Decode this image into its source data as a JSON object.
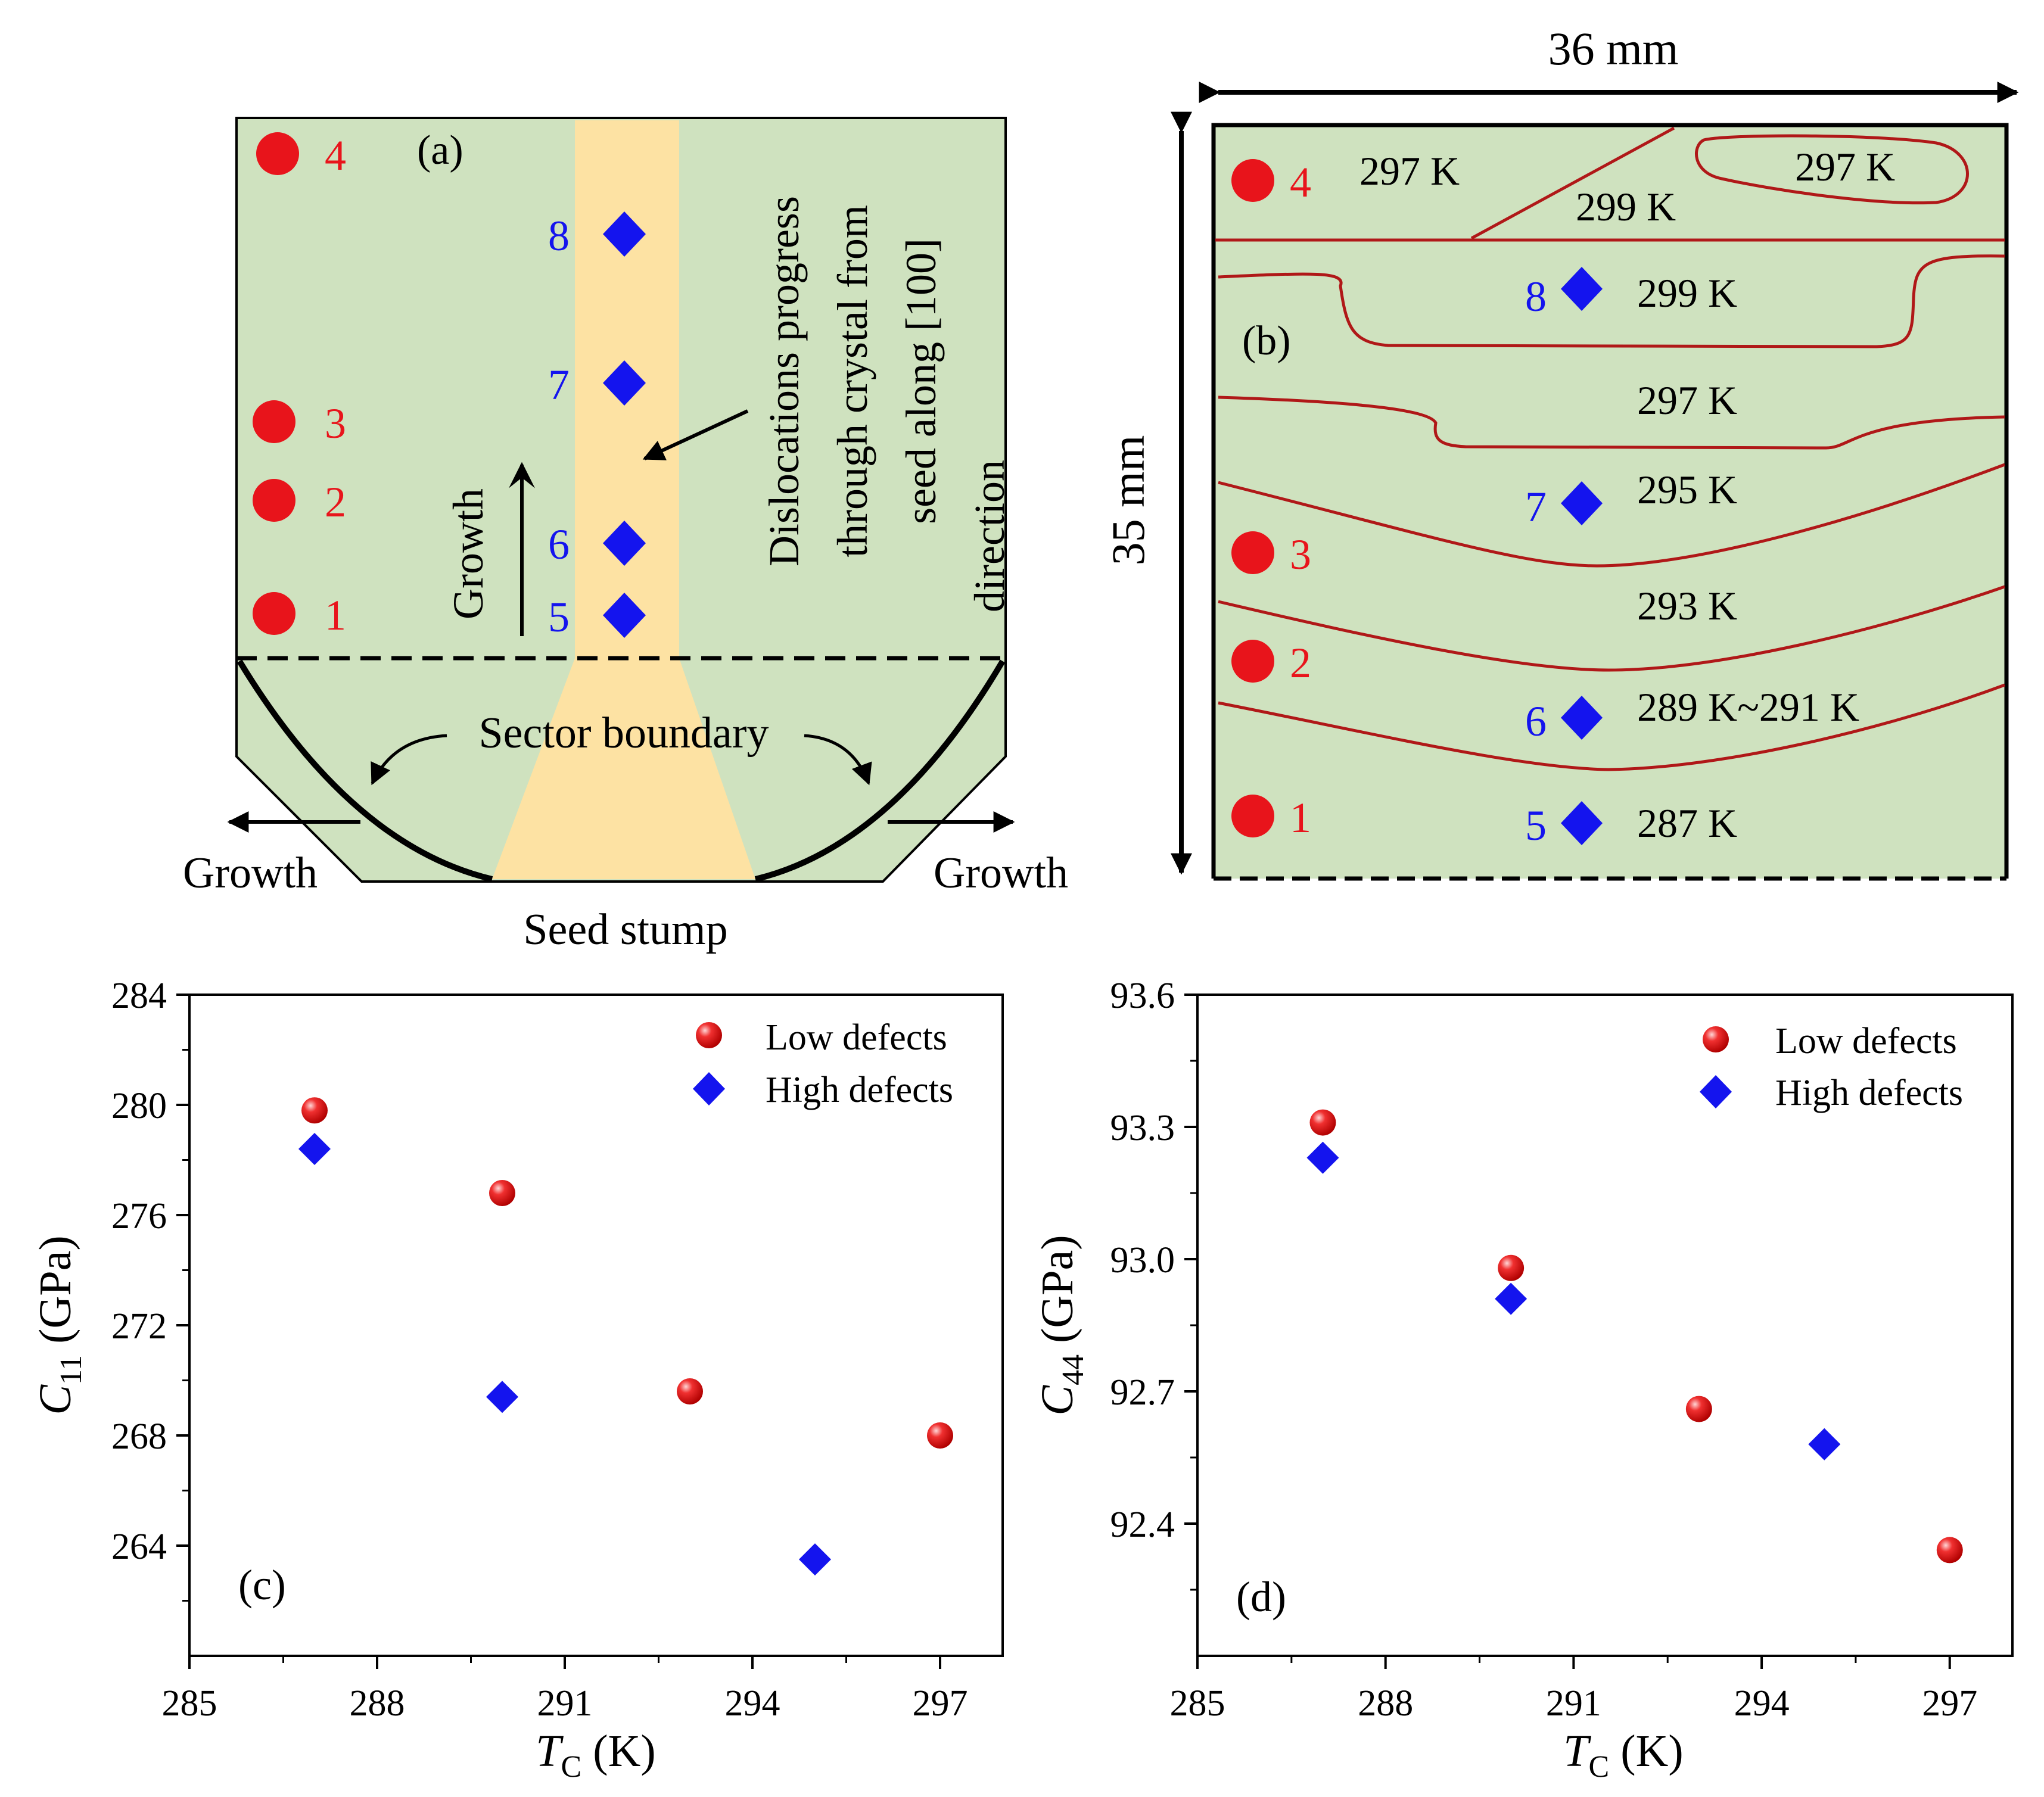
{
  "colors": {
    "green_fill": "#cfe2bf",
    "seed_fill": "#fde2a3",
    "low_marker": "#e8141b",
    "high_marker": "#1414ee",
    "contour": "#b01818",
    "ink": "#000000"
  },
  "panel_a": {
    "label": "(a)",
    "low_defect_points": [
      "1",
      "2",
      "3",
      "4"
    ],
    "high_defect_points": [
      "5",
      "6",
      "7",
      "8"
    ],
    "growth_up": "Growth",
    "growth_left": "Growth",
    "growth_right": "Growth",
    "sector_boundary": "Sector boundary",
    "seed_stump": "Seed stump",
    "dislocation_note": [
      "Dislocations progress",
      "through crystal from",
      "seed along [100]",
      "direction"
    ]
  },
  "panel_b": {
    "label": "(b)",
    "width_label": "36 mm",
    "height_label": "35 mm",
    "low_defect_points": [
      "1",
      "2",
      "3",
      "4"
    ],
    "high_defect_points": [
      "5",
      "6",
      "7",
      "8"
    ],
    "temperature_labels": [
      "297 K",
      "297 K",
      "299 K",
      "299 K",
      "297 K",
      "295 K",
      "293 K",
      "289 K~291 K",
      "287 K"
    ]
  },
  "chart_data": [
    {
      "panel": "(c)",
      "type": "scatter",
      "xlabel_symbol": "T",
      "xlabel_sub": "C",
      "xlabel_unit": " (K)",
      "ylabel_symbol": "C",
      "ylabel_sub": "11",
      "ylabel_unit": " (GPa)",
      "xlim": [
        285,
        298
      ],
      "ylim": [
        260,
        284
      ],
      "xticks": [
        285,
        288,
        291,
        294,
        297
      ],
      "yticks": [
        264,
        268,
        272,
        276,
        280,
        284
      ],
      "legend_position": "top-right",
      "series": [
        {
          "name": "Low defects",
          "marker": "sphere",
          "x": [
            287,
            290,
            293,
            297
          ],
          "y": [
            279.8,
            276.8,
            269.6,
            268.0
          ]
        },
        {
          "name": "High defects",
          "marker": "diamond",
          "x": [
            287,
            290,
            295
          ],
          "y": [
            278.4,
            269.4,
            263.5
          ]
        }
      ]
    },
    {
      "panel": "(d)",
      "type": "scatter",
      "xlabel_symbol": "T",
      "xlabel_sub": "C",
      "xlabel_unit": " (K)",
      "ylabel_symbol": "C",
      "ylabel_sub": "44",
      "ylabel_unit": " (GPa)",
      "xlim": [
        285,
        298
      ],
      "ylim": [
        92.1,
        93.6
      ],
      "xticks": [
        285,
        288,
        291,
        294,
        297
      ],
      "yticks": [
        92.4,
        92.7,
        93.0,
        93.3,
        93.6
      ],
      "legend_position": "top-right",
      "series": [
        {
          "name": "Low defects",
          "marker": "sphere",
          "x": [
            287,
            290,
            293,
            297
          ],
          "y": [
            93.31,
            92.98,
            92.66,
            92.34
          ]
        },
        {
          "name": "High defects",
          "marker": "diamond",
          "x": [
            287,
            290,
            295
          ],
          "y": [
            93.23,
            92.91,
            92.58
          ]
        }
      ]
    }
  ]
}
